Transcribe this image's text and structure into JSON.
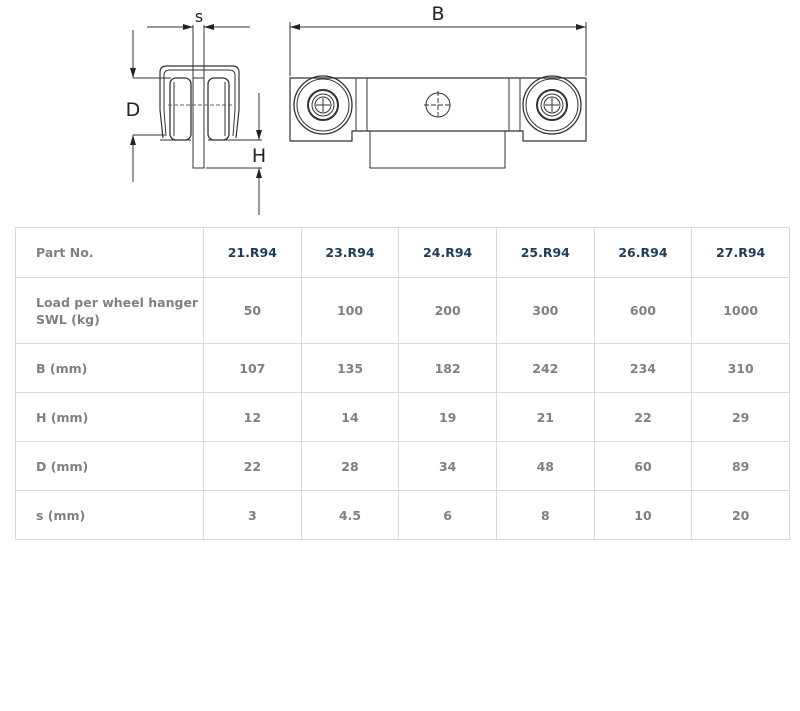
{
  "drawing": {
    "dimension_labels": {
      "s": "s",
      "B": "B",
      "D": "D",
      "H": "H"
    }
  },
  "table": {
    "header": {
      "label": "Part No.",
      "parts": [
        "21.R94",
        "23.R94",
        "24.R94",
        "25.R94",
        "26.R94",
        "27.R94"
      ]
    },
    "rows": [
      {
        "label": "Load per wheel hanger SWL (kg)",
        "values": [
          "50",
          "100",
          "200",
          "300",
          "600",
          "1000"
        ]
      },
      {
        "label": "B (mm)",
        "values": [
          "107",
          "135",
          "182",
          "242",
          "234",
          "310"
        ]
      },
      {
        "label": "H (mm)",
        "values": [
          "12",
          "14",
          "19",
          "21",
          "22",
          "29"
        ]
      },
      {
        "label": "D (mm)",
        "values": [
          "22",
          "28",
          "34",
          "48",
          "60",
          "89"
        ]
      },
      {
        "label": "s (mm)",
        "values": [
          "3",
          "4.5",
          "6",
          "8",
          "10",
          "20"
        ]
      }
    ]
  }
}
